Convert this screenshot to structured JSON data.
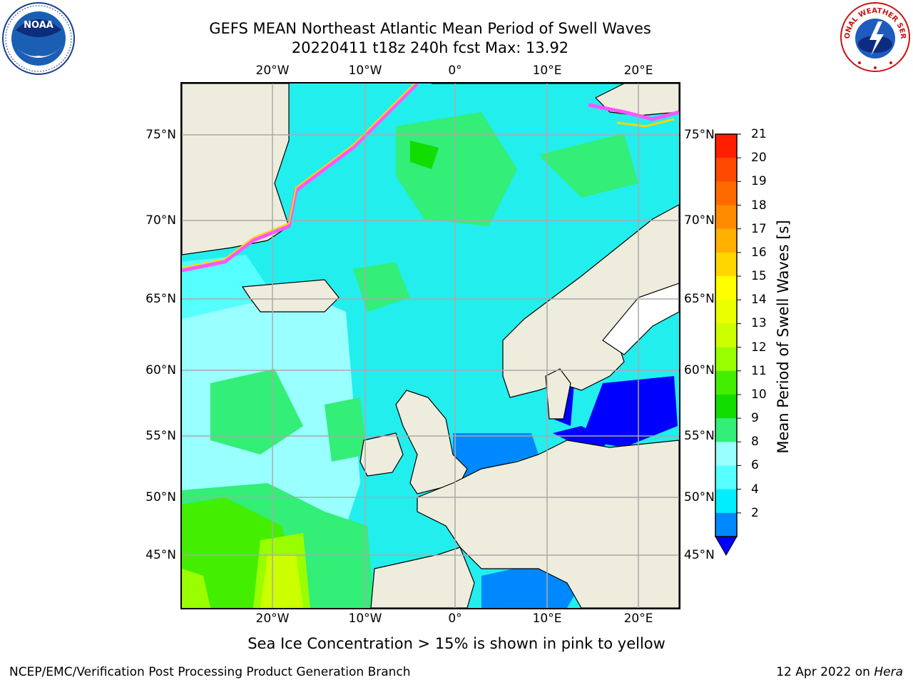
{
  "title": {
    "line1": "GEFS MEAN Northeast Atlantic Mean Period of Swell Waves",
    "line2": "20220411 t18z 240h fcst   Max: 13.92"
  },
  "map": {
    "lon_labels": [
      "20°W",
      "10°W",
      "0°",
      "10°E",
      "20°E"
    ],
    "lat_labels": [
      "75°N",
      "70°N",
      "65°N",
      "60°N",
      "55°N",
      "50°N",
      "45°N"
    ],
    "land_color": "#eeecdc",
    "ocean_base_color": "#22eeee"
  },
  "colorbar": {
    "label": "Mean Period of Swell Waves [s]",
    "ticks": [
      "21",
      "20",
      "19",
      "18",
      "17",
      "16",
      "15",
      "14",
      "13",
      "12",
      "11",
      "10",
      "9",
      "8",
      "6",
      "4",
      "2"
    ],
    "colors": [
      "#ff1f00",
      "#ff4a00",
      "#ff6a00",
      "#ff8c00",
      "#ffb000",
      "#ffd600",
      "#ffff00",
      "#eaff00",
      "#ccff00",
      "#99ff00",
      "#44ee00",
      "#11dd00",
      "#33ee77",
      "#99ffff",
      "#55ffff",
      "#00eeff",
      "#0088ff"
    ],
    "under_color": "#0000ff"
  },
  "note": "Sea Ice Concentration > 15% is shown in pink to yellow",
  "footer": {
    "left": "NCEP/EMC/Verification Post Processing Product Generation Branch",
    "date": "12 Apr 2022 on ",
    "host": "Hera"
  },
  "logos": {
    "noaa": "NOAA",
    "nws": "NATIONAL WEATHER SERVICE"
  }
}
